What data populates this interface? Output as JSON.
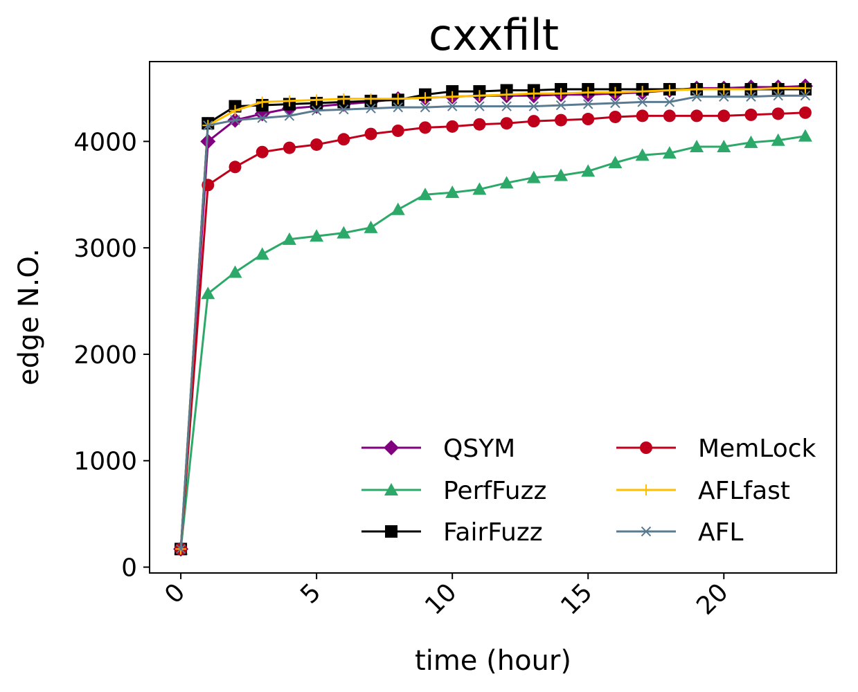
{
  "chart_data": {
    "type": "line",
    "title": "cxxfilt",
    "xlabel": "time (hour)",
    "ylabel": "edge N.O.",
    "xlim": [
      -1.15,
      24.15
    ],
    "ylim": [
      -55,
      4750
    ],
    "xticks": [
      0,
      5,
      10,
      15,
      20
    ],
    "yticks": [
      0,
      1000,
      2000,
      3000,
      4000
    ],
    "x_tick_rotation_deg": 45,
    "grid": false,
    "legend": {
      "placement": "lower-right",
      "columns": 2
    },
    "x": [
      0,
      1,
      2,
      3,
      4,
      5,
      6,
      7,
      8,
      9,
      10,
      11,
      12,
      13,
      14,
      15,
      16,
      17,
      18,
      19,
      20,
      21,
      22,
      23
    ],
    "series": [
      {
        "name": "QSYM",
        "color": "#800080",
        "marker": "diamond",
        "values": [
          170,
          4000,
          4200,
          4260,
          4310,
          4330,
          4350,
          4370,
          4400,
          4410,
          4420,
          4430,
          4430,
          4430,
          4440,
          4440,
          4450,
          4460,
          4480,
          4500,
          4500,
          4510,
          4510,
          4520
        ]
      },
      {
        "name": "PerfFuzz",
        "color": "#2ca868",
        "marker": "triangle",
        "values": [
          170,
          2570,
          2770,
          2940,
          3080,
          3110,
          3140,
          3190,
          3360,
          3500,
          3520,
          3550,
          3610,
          3660,
          3680,
          3720,
          3800,
          3870,
          3890,
          3950,
          3950,
          3990,
          4010,
          4050
        ]
      },
      {
        "name": "FairFuzz",
        "color": "#000000",
        "marker": "square",
        "values": [
          170,
          4170,
          4330,
          4340,
          4350,
          4360,
          4370,
          4380,
          4390,
          4440,
          4470,
          4470,
          4480,
          4480,
          4490,
          4490,
          4490,
          4490,
          4490,
          4490,
          4490,
          4490,
          4490,
          4490
        ]
      },
      {
        "name": "MemLock",
        "color": "#c0001a",
        "marker": "circle",
        "values": [
          170,
          3590,
          3760,
          3900,
          3940,
          3970,
          4020,
          4070,
          4100,
          4130,
          4140,
          4160,
          4170,
          4190,
          4200,
          4210,
          4230,
          4240,
          4240,
          4240,
          4240,
          4250,
          4260,
          4270
        ]
      },
      {
        "name": "AFLfast",
        "color": "#ffbf00",
        "marker": "plus",
        "values": [
          170,
          4150,
          4290,
          4370,
          4380,
          4390,
          4400,
          4400,
          4400,
          4410,
          4420,
          4430,
          4440,
          4450,
          4450,
          4460,
          4460,
          4470,
          4480,
          4490,
          4490,
          4490,
          4500,
          4500
        ]
      },
      {
        "name": "AFL",
        "color": "#5a7a90",
        "marker": "x",
        "values": [
          170,
          4150,
          4200,
          4220,
          4240,
          4290,
          4300,
          4310,
          4320,
          4320,
          4330,
          4330,
          4330,
          4330,
          4340,
          4350,
          4360,
          4370,
          4370,
          4420,
          4420,
          4420,
          4430,
          4430
        ]
      }
    ]
  }
}
